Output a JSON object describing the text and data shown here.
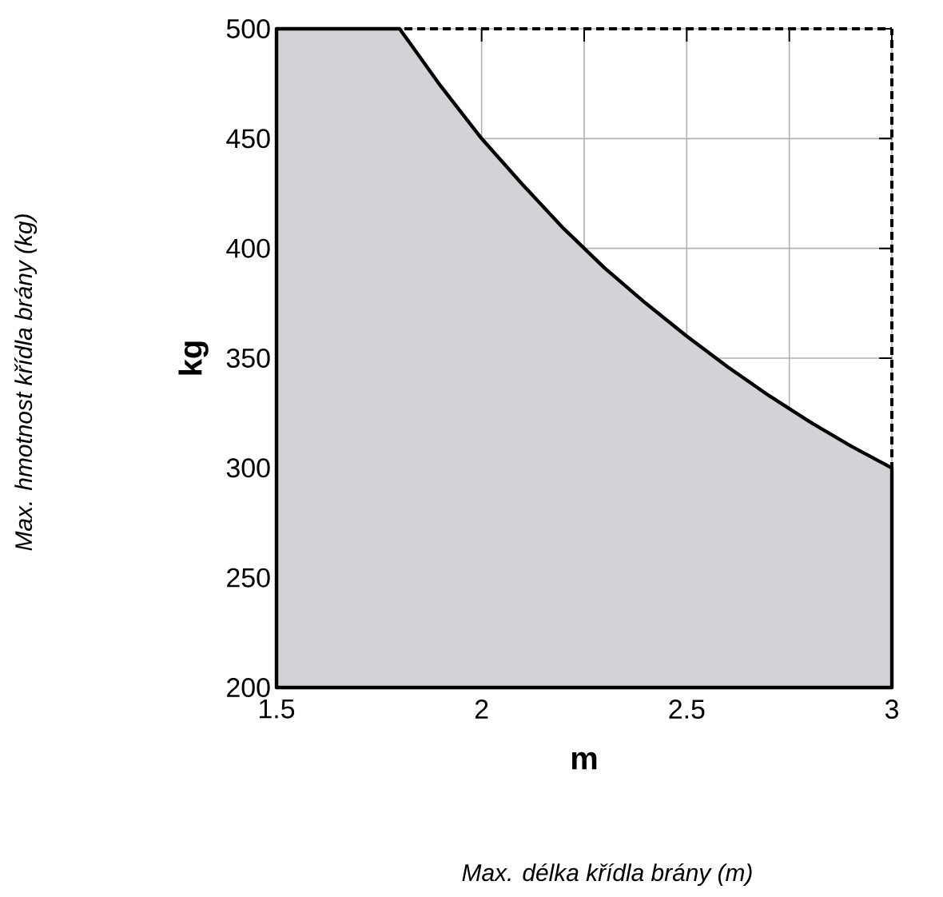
{
  "chart_data": {
    "type": "area",
    "xlabel": "m",
    "ylabel": "kg",
    "annotations": [
      "Max. hmotnost křídla brány (kg)",
      "Max. délka křídla brány (m)"
    ],
    "x": [
      1.5,
      1.8,
      1.9,
      2,
      2.1,
      2.2,
      2.3,
      2.4,
      2.5,
      2.6,
      2.7,
      2.8,
      2.9,
      3
    ],
    "series": [
      {
        "color": "#d1d3d6",
        "values": [
          500,
          500,
          474,
          450,
          429,
          409,
          391,
          375,
          360,
          346,
          333,
          321,
          310,
          300
        ]
      }
    ],
    "xlim": [
      1.5,
      3
    ],
    "ylim": [
      200,
      500
    ],
    "xticks": [
      1.5,
      {
        "value": 1.75,
        "label": null
      },
      2,
      {
        "value": 2.25,
        "label": null
      },
      2.5,
      {
        "value": 2.75,
        "label": null
      },
      3
    ],
    "yticks": [
      200,
      250,
      300,
      350,
      400,
      450,
      500
    ],
    "grid": true,
    "ref_lines": [
      {
        "axis": "y",
        "value": 500,
        "line_style": "dashed"
      },
      {
        "axis": "x",
        "value": 3,
        "line_style": "dashed"
      }
    ]
  }
}
